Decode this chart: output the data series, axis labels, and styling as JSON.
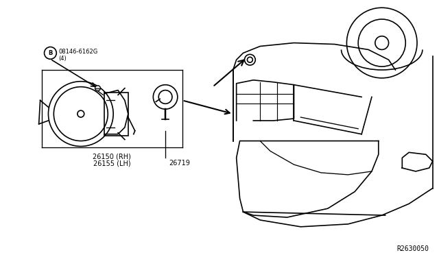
{
  "bg_color": "#ffffff",
  "line_color": "#000000",
  "label_color": "#000000",
  "diagram_ref": "R2630050",
  "part_labels": {
    "fog_lamp": [
      "26150 (RH)",
      "26155 (LH)"
    ],
    "bulb_socket": "26719",
    "bolt": "08146-6162G",
    "bolt_qty": "(4)"
  },
  "figsize": [
    6.4,
    3.72
  ],
  "dpi": 100
}
